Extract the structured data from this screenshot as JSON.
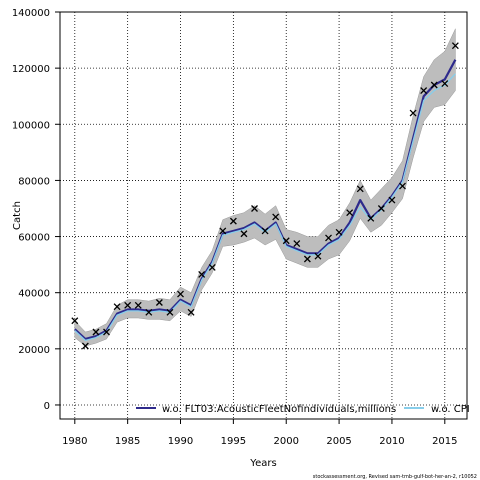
{
  "chart_data": {
    "type": "line",
    "xlabel": "Years",
    "ylabel": "Catch",
    "xlim": [
      1978.6,
      1980.0
    ],
    "ylim": [
      -5000,
      140000
    ],
    "x_ticks": [
      1980,
      1985,
      1990,
      1995,
      2000,
      2005,
      2010,
      2015
    ],
    "y_ticks": [
      0,
      20000,
      40000,
      60000,
      80000,
      100000,
      120000,
      140000
    ],
    "grid": true,
    "legend": {
      "placement": "bottom-right"
    },
    "x": [
      1980,
      1981,
      1982,
      1983,
      1984,
      1985,
      1986,
      1987,
      1988,
      1989,
      1990,
      1991,
      1992,
      1993,
      1994,
      1995,
      1996,
      1997,
      1998,
      1999,
      2000,
      2001,
      2002,
      2003,
      2004,
      2005,
      2006,
      2007,
      2008,
      2009,
      2010,
      2011,
      2012,
      2013,
      2014,
      2015,
      2016
    ],
    "series": [
      {
        "name": "w.o. FLT03:AcousticFleetNofindividuals,millions",
        "color": "#2e2a8c",
        "values": [
          27000,
          23500,
          24500,
          26500,
          32500,
          34000,
          34000,
          33500,
          34000,
          33500,
          37500,
          35500,
          45000,
          51000,
          61000,
          62000,
          63000,
          65000,
          62000,
          65000,
          57000,
          55500,
          54000,
          54000,
          57500,
          59500,
          65000,
          73000,
          66500,
          70000,
          74500,
          80000,
          95000,
          110000,
          114000,
          116000,
          123000
        ]
      },
      {
        "name": "w.o. CPI",
        "color": "#87ceeb",
        "values": [
          26500,
          23000,
          24000,
          26000,
          32000,
          33500,
          33500,
          33000,
          33500,
          33000,
          37000,
          35000,
          44500,
          50500,
          60500,
          61500,
          62500,
          64500,
          61500,
          64500,
          56500,
          55000,
          53500,
          53500,
          57000,
          59000,
          64000,
          70500,
          66000,
          69500,
          74000,
          79500,
          94000,
          108500,
          112000,
          114000,
          118000
        ]
      }
    ],
    "band": {
      "upper": [
        30000,
        26000,
        27000,
        29000,
        35500,
        37500,
        37500,
        37000,
        38000,
        37500,
        42000,
        40000,
        49000,
        55000,
        66000,
        67500,
        68500,
        71000,
        68000,
        71000,
        62500,
        61500,
        60000,
        60000,
        64000,
        66000,
        72000,
        80000,
        73000,
        77000,
        81000,
        87000,
        103000,
        117000,
        123000,
        126000,
        134000
      ],
      "lower": [
        24000,
        21000,
        22000,
        23500,
        29500,
        31000,
        31000,
        30500,
        30500,
        30000,
        33500,
        31500,
        41000,
        47000,
        56500,
        57000,
        58000,
        59500,
        57000,
        59000,
        52000,
        50500,
        49000,
        49000,
        52000,
        53500,
        58500,
        66500,
        61500,
        64000,
        68500,
        73500,
        88000,
        101000,
        106000,
        107000,
        112000
      ]
    },
    "observed": [
      30000,
      21000,
      26000,
      26000,
      35000,
      35500,
      35500,
      33000,
      36500,
      33000,
      39500,
      33000,
      46500,
      49000,
      62000,
      65500,
      61000,
      70000,
      62000,
      67000,
      58500,
      57500,
      52000,
      53000,
      59500,
      61500,
      68500,
      77000,
      66500,
      70000,
      73000,
      78000,
      104000,
      112000,
      114000,
      114500,
      128000
    ],
    "footer": "stockassessment.org, Revised  sam-tmb-gulf-bot-her-an-2, r10052"
  }
}
